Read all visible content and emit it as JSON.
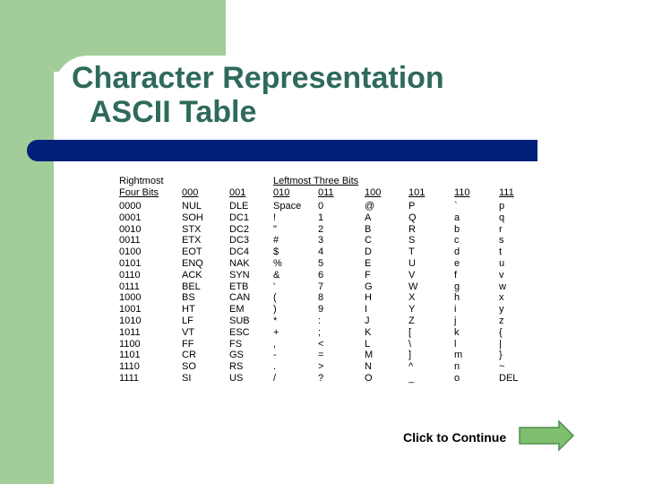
{
  "slide": {
    "title_line1": "Character Representation",
    "title_line2": "ASCII Table"
  },
  "table": {
    "row_header_line1": "Rightmost",
    "row_header_line2": "Four Bits",
    "col_group_header": "Leftmost Three Bits",
    "columns": [
      "000",
      "001",
      "010",
      "011",
      "100",
      "101",
      "110",
      "111"
    ],
    "row_labels": [
      "0000",
      "0001",
      "0010",
      "0011",
      "0100",
      "0101",
      "0110",
      "0111",
      "1000",
      "1001",
      "1010",
      "1011",
      "1100",
      "1101",
      "1110",
      "1111"
    ],
    "cells": [
      [
        "NUL",
        "DLE",
        "Space",
        "0",
        "@",
        "P",
        "`",
        "p"
      ],
      [
        "SOH",
        "DC1",
        "!",
        "1",
        "A",
        "Q",
        "a",
        "q"
      ],
      [
        "STX",
        "DC2",
        "\"",
        "2",
        "B",
        "R",
        "b",
        "r"
      ],
      [
        "ETX",
        "DC3",
        "#",
        "3",
        "C",
        "S",
        "c",
        "s"
      ],
      [
        "EOT",
        "DC4",
        "$",
        "4",
        "D",
        "T",
        "d",
        "t"
      ],
      [
        "ENQ",
        "NAK",
        "%",
        "5",
        "E",
        "U",
        "e",
        "u"
      ],
      [
        "ACK",
        "SYN",
        "&",
        "6",
        "F",
        "V",
        "f",
        "v"
      ],
      [
        "BEL",
        "ETB",
        "'",
        "7",
        "G",
        "W",
        "g",
        "w"
      ],
      [
        "BS",
        "CAN",
        "(",
        "8",
        "H",
        "X",
        "h",
        "x"
      ],
      [
        "HT",
        "EM",
        ")",
        "9",
        "I",
        "Y",
        "i",
        "y"
      ],
      [
        "LF",
        "SUB",
        "*",
        ":",
        "J",
        "Z",
        "j",
        "z"
      ],
      [
        "VT",
        "ESC",
        "+",
        ";",
        "K",
        "[",
        "k",
        "{"
      ],
      [
        "FF",
        "FS",
        ",",
        "<",
        "L",
        "\\",
        "l",
        "|"
      ],
      [
        "CR",
        "GS",
        "-",
        "=",
        "M",
        "]",
        "m",
        "}"
      ],
      [
        "SO",
        "RS",
        ".",
        ">",
        "N",
        "^",
        "n",
        "~"
      ],
      [
        "SI",
        "US",
        "/",
        "?",
        "O",
        "_",
        "o",
        "DEL"
      ]
    ]
  },
  "continue_button": {
    "label": "Click to Continue"
  },
  "colors": {
    "title": "#2e6a5b",
    "accent_green": "#a2cd98",
    "title_bar": "#00207a",
    "arrow_fill": "#7fbf6f"
  }
}
